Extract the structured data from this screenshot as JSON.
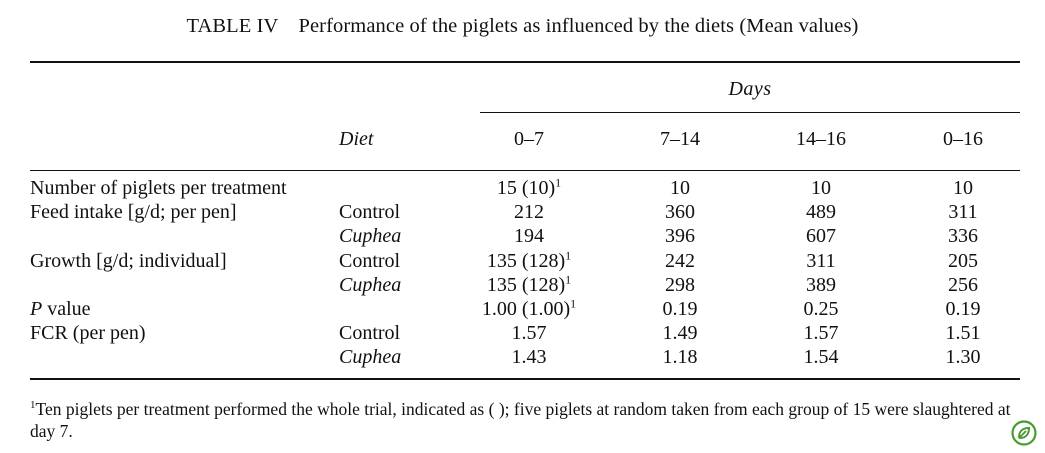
{
  "caption": {
    "label": "TABLE IV",
    "text": "Performance of the piglets as influenced by the diets (Mean values)"
  },
  "header": {
    "days_label": "Days",
    "diet_label": "Diet",
    "periods": [
      "0–7",
      "7–14",
      "14–16",
      "0–16"
    ]
  },
  "rows": [
    {
      "label": "Number of piglets per treatment",
      "diet": "",
      "values": [
        "15 (10)",
        "10",
        "10",
        "10"
      ],
      "sup": [
        "1",
        "",
        "",
        ""
      ]
    },
    {
      "label": "Feed intake [g/d; per pen]",
      "diet": "Control",
      "values": [
        "212",
        "360",
        "489",
        "311"
      ],
      "sup": [
        "",
        "",
        "",
        ""
      ]
    },
    {
      "label": "",
      "diet": "Cuphea",
      "values": [
        "194",
        "396",
        "607",
        "336"
      ],
      "sup": [
        "",
        "",
        "",
        ""
      ]
    },
    {
      "label": "Growth [g/d; individual]",
      "diet": "Control",
      "values": [
        "135 (128)",
        "242",
        "311",
        "205"
      ],
      "sup": [
        "1",
        "",
        "",
        ""
      ]
    },
    {
      "label": "",
      "diet": "Cuphea",
      "values": [
        "135 (128)",
        "298",
        "389",
        "256"
      ],
      "sup": [
        "1",
        "",
        "",
        ""
      ]
    },
    {
      "label_italic": "P",
      "label": " value",
      "diet": "",
      "values": [
        "1.00 (1.00)",
        "0.19",
        "0.25",
        "0.19"
      ],
      "sup": [
        "1",
        "",
        "",
        ""
      ]
    },
    {
      "label": "FCR (per pen)",
      "diet": "Control",
      "values": [
        "1.57",
        "1.49",
        "1.57",
        "1.51"
      ],
      "sup": [
        "",
        "",
        "",
        ""
      ]
    },
    {
      "label": "",
      "diet": "Cuphea",
      "values": [
        "1.43",
        "1.18",
        "1.54",
        "1.30"
      ],
      "sup": [
        "",
        "",
        "",
        ""
      ]
    }
  ],
  "footnote": {
    "marker": "1",
    "text": "Ten piglets per treatment performed the whole trial, indicated as ( ); five piglets at random taken from each group of 15 were slaughtered at day 7."
  },
  "icons": {
    "corner": "leaf-badge-icon",
    "corner_color": "#4a9a2e"
  }
}
